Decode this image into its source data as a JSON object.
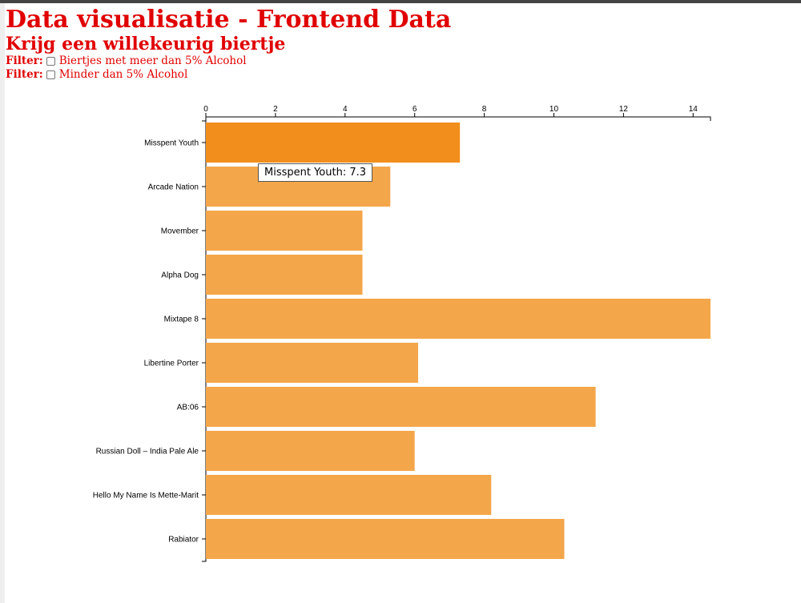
{
  "header": {
    "title": "Data visualisatie - Frontend Data",
    "subtitle": "Krijg een willekeurig biertje"
  },
  "filters": [
    {
      "label": "Filter:",
      "text": "Biertjes met meer dan 5% Alcohol",
      "checked": false
    },
    {
      "label": "Filter:",
      "text": "Minder dan 5% Alcohol",
      "checked": false
    }
  ],
  "tooltip": {
    "text": "Misspent Youth: 7.3"
  },
  "colors": {
    "bar": "#f4a64a",
    "bar_highlight": "#f28e1c",
    "title": "#e00000"
  },
  "chart_data": {
    "type": "bar",
    "orientation": "horizontal",
    "categories": [
      "Misspent Youth",
      "Arcade Nation",
      "Movember",
      "Alpha Dog",
      "Mixtape 8",
      "Libertine Porter",
      "AB:06",
      "Russian Doll – India Pale Ale",
      "Hello My Name Is Mette-Marit",
      "Rabiator"
    ],
    "values": [
      7.3,
      5.3,
      4.5,
      4.5,
      14.5,
      6.1,
      11.2,
      6.0,
      8.2,
      10.3
    ],
    "highlighted": "Misspent Youth",
    "xlim": [
      0,
      14.5
    ],
    "xticks": [
      0,
      2,
      4,
      6,
      8,
      10,
      12,
      14
    ],
    "x_axis_position": "top",
    "grid": false
  }
}
